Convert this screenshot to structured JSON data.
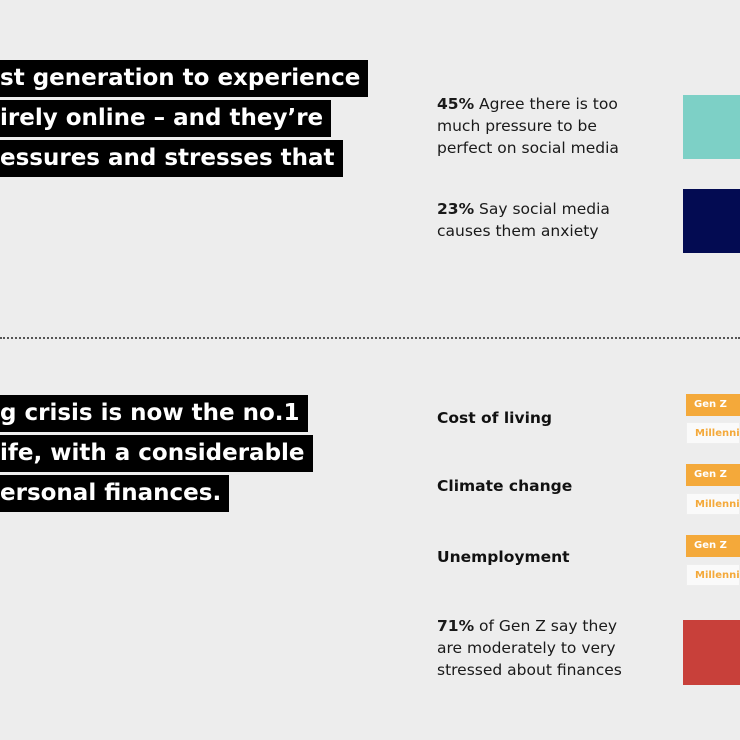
{
  "top_section": {
    "headline_lines": [
      "st generation to experience",
      "irely online – and they’re",
      "essures and stresses that"
    ],
    "stats": [
      {
        "percent": "45%",
        "lines": [
          "Agree there is too",
          "much pressure to be",
          "perfect on social media"
        ],
        "color": "#7dd0c6"
      },
      {
        "percent": "23%",
        "lines": [
          "Say social media",
          "causes them anxiety"
        ],
        "color": "#030b52"
      }
    ]
  },
  "bottom_section": {
    "headline_lines": [
      "g crisis is now the no.1",
      "ife, with a considerable",
      "ersonal finances."
    ],
    "topics": [
      {
        "label": "Cost of living",
        "genz": "Gen Z",
        "mill": "Millennia"
      },
      {
        "label": "Climate change",
        "genz": "Gen Z",
        "mill": "Millennia"
      },
      {
        "label": "Unemployment",
        "genz": "Gen Z",
        "mill": "Millennia"
      }
    ],
    "stat": {
      "percent": "71%",
      "lines": [
        "of Gen Z say they",
        "are moderately to very",
        "stressed about finances"
      ],
      "color": "#c8403a"
    }
  },
  "colors": {
    "background": "#ededed",
    "accent_orange": "#f4a93a"
  }
}
